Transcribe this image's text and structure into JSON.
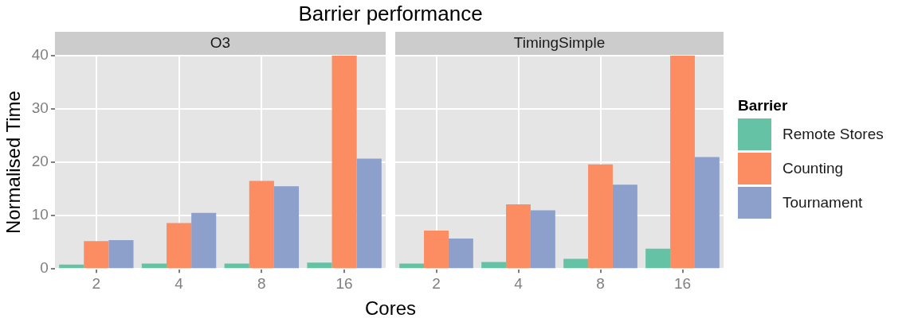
{
  "chart_data": [
    {
      "type": "bar",
      "title": "Barrier performance",
      "subtitle": "O3",
      "xlabel": "Cores",
      "ylabel": "Normalised Time",
      "categories": [
        "2",
        "4",
        "8",
        "16"
      ],
      "series": [
        {
          "color": "#66c2a5",
          "values": [
            0.8,
            1.0,
            1.0,
            1.2
          ]
        },
        {
          "color": "#fc8d62",
          "values": [
            5.2,
            8.6,
            16.5,
            40
          ]
        },
        {
          "color": "#8da0cb",
          "values": [
            5.4,
            10.5,
            15.5,
            20.7
          ]
        }
      ],
      "ylim": [
        0,
        40
      ],
      "yticks": [
        0,
        10,
        20,
        30,
        40
      ],
      "grid": true,
      "legend": false
    },
    {
      "type": "bar",
      "title": "TimingSimple",
      "categories": [
        "2",
        "4",
        "8",
        "16"
      ],
      "series": [
        {
          "name": "Remote Stores",
          "color": "#66c2a5",
          "values": [
            1.0,
            1.3,
            1.9,
            3.8
          ]
        },
        {
          "name": "Counting",
          "color": "#fc8d62",
          "values": [
            7.2,
            12.1,
            19.6,
            40
          ]
        },
        {
          "name": "Tournament",
          "color": "#8da0cb",
          "values": [
            5.7,
            11.0,
            15.8,
            21.0
          ]
        }
      ],
      "ylim": [
        0,
        40
      ],
      "yticks": [
        0,
        10,
        20,
        30,
        40
      ],
      "grid": true,
      "tick_labels": "x",
      "legend": "right",
      "legend_title": "Barrier"
    }
  ]
}
